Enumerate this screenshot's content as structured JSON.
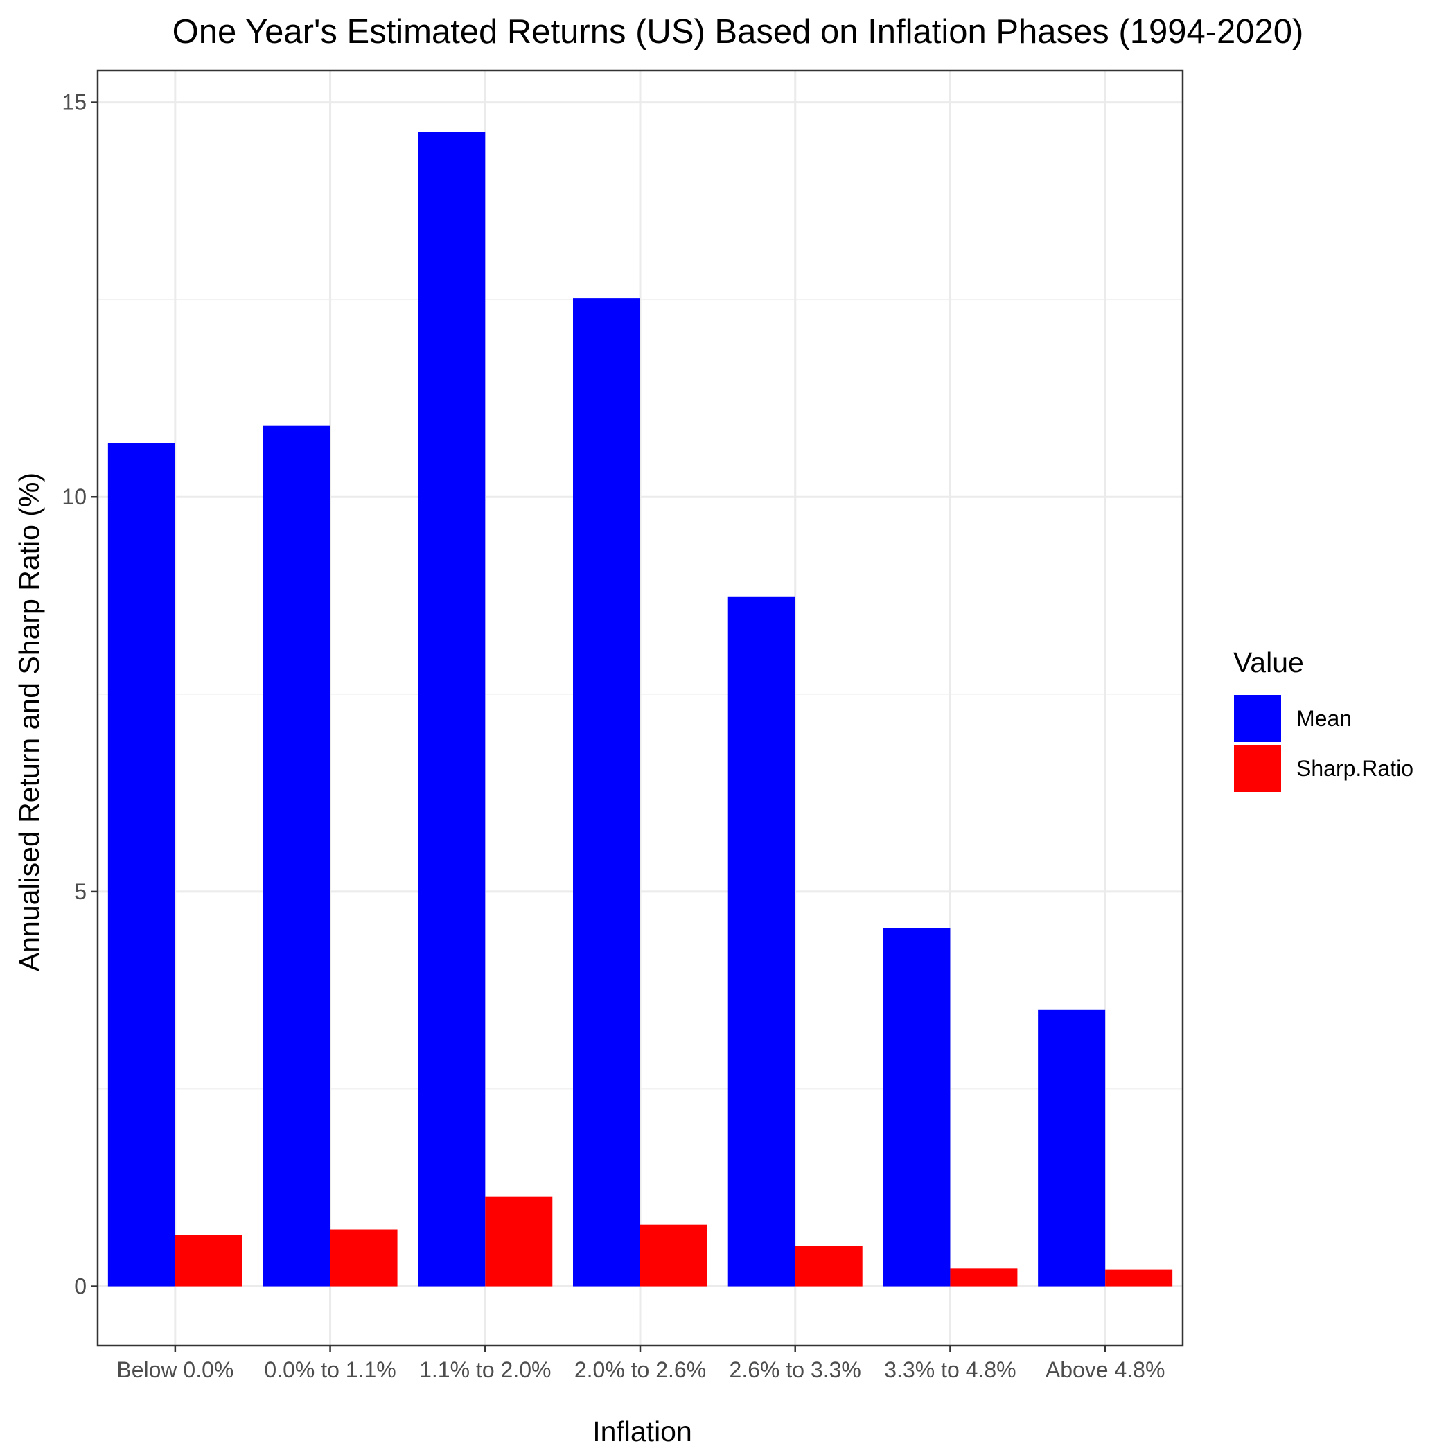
{
  "chart_data": {
    "type": "bar",
    "title": "One Year's Estimated Returns (US) Based on Inflation Phases (1994-2020)",
    "xlabel": "Inflation",
    "ylabel": "Annualised Return and Sharp Ratio (%)",
    "categories": [
      "Below  0.0%",
      "0.0% to 1.1%",
      "1.1% to 2.0%",
      "2.0% to 2.6%",
      "2.6% to 3.3%",
      "3.3% to 4.8%",
      "Above 4.8%"
    ],
    "series": [
      {
        "name": "Mean",
        "color": "#0000FF",
        "values": [
          10.68,
          10.9,
          14.62,
          12.52,
          8.74,
          4.54,
          3.5
        ]
      },
      {
        "name": "Sharp.Ratio",
        "color": "#FF0000",
        "values": [
          0.65,
          0.72,
          1.14,
          0.78,
          0.51,
          0.23,
          0.21
        ]
      }
    ],
    "ylim": [
      -0.75,
      15.4
    ],
    "yticks": [
      0,
      5,
      10,
      15
    ],
    "grid": true,
    "legend": {
      "title": "Value",
      "position": "right"
    }
  }
}
